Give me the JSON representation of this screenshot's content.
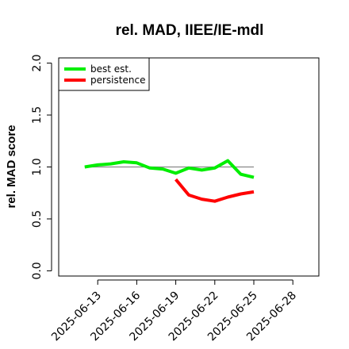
{
  "chart_data": {
    "type": "line",
    "title": "rel. MAD, IIEE/IE-mdl",
    "xlabel": "",
    "ylabel": "rel. MAD score",
    "xlim": [
      "2025-06-10",
      "2025-06-30"
    ],
    "ylim": [
      -0.05,
      2.05
    ],
    "x_ticks": [
      "2025-06-13",
      "2025-06-16",
      "2025-06-19",
      "2025-06-22",
      "2025-06-25",
      "2025-06-28"
    ],
    "y_ticks": [
      "0.0",
      "0.5",
      "1.0",
      "1.5",
      "2.0"
    ],
    "reference_line": {
      "y": 1.0,
      "x_from": "2025-06-12",
      "x_to": "2025-06-25",
      "color": "#888888"
    },
    "series": [
      {
        "name": "best est.",
        "color": "#00ee00",
        "x": [
          "2025-06-12",
          "2025-06-13",
          "2025-06-14",
          "2025-06-15",
          "2025-06-16",
          "2025-06-17",
          "2025-06-18",
          "2025-06-19",
          "2025-06-20",
          "2025-06-21",
          "2025-06-22",
          "2025-06-23",
          "2025-06-24",
          "2025-06-25"
        ],
        "values": [
          1.0,
          1.02,
          1.03,
          1.05,
          1.04,
          0.99,
          0.98,
          0.94,
          0.99,
          0.97,
          0.99,
          1.06,
          0.93,
          0.9
        ]
      },
      {
        "name": "persistence",
        "color": "#ff0000",
        "x": [
          "2025-06-19",
          "2025-06-20",
          "2025-06-21",
          "2025-06-22",
          "2025-06-23",
          "2025-06-24",
          "2025-06-25"
        ],
        "values": [
          0.88,
          0.73,
          0.69,
          0.67,
          0.71,
          0.74,
          0.76
        ]
      }
    ],
    "legend": {
      "position": "top-left",
      "entries": [
        "best est.",
        "persistence"
      ]
    },
    "grid": false
  }
}
